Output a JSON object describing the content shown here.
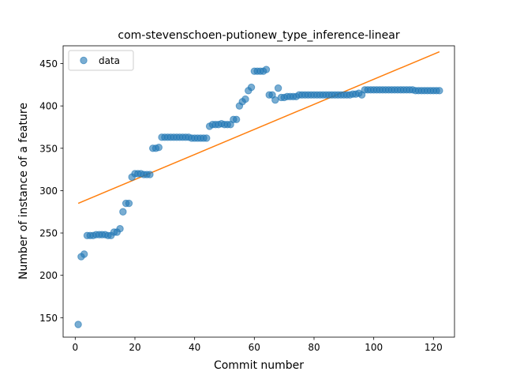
{
  "chart_data": {
    "type": "scatter",
    "title": "com-stevenschoen-putionew_type_inference-linear",
    "xlabel": "Commit number",
    "ylabel": "Number of instance of a feature",
    "xlim": [
      -4.05,
      127.05
    ],
    "ylim": [
      127,
      471
    ],
    "xticks": [
      0,
      20,
      40,
      60,
      80,
      100,
      120
    ],
    "yticks": [
      150,
      200,
      250,
      300,
      350,
      400,
      450
    ],
    "grid": false,
    "legend": {
      "location": "upper left",
      "entries": [
        "data"
      ]
    },
    "colors": {
      "data": "#1f77b4",
      "fit": "#ff7f0e"
    },
    "series": [
      {
        "name": "data",
        "kind": "scatter",
        "x": [
          1,
          2,
          3,
          4,
          5,
          6,
          7,
          8,
          9,
          10,
          11,
          12,
          13,
          14,
          15,
          16,
          17,
          18,
          19,
          20,
          21,
          22,
          23,
          24,
          25,
          26,
          27,
          28,
          29,
          30,
          31,
          32,
          33,
          34,
          35,
          36,
          37,
          38,
          39,
          40,
          41,
          42,
          43,
          44,
          45,
          46,
          47,
          48,
          49,
          50,
          51,
          52,
          53,
          54,
          55,
          56,
          57,
          58,
          59,
          60,
          61,
          62,
          63,
          64,
          65,
          66,
          67,
          68,
          69,
          70,
          71,
          72,
          73,
          74,
          75,
          76,
          77,
          78,
          79,
          80,
          81,
          82,
          83,
          84,
          85,
          86,
          87,
          88,
          89,
          90,
          91,
          92,
          93,
          94,
          95,
          96,
          97,
          98,
          99,
          100,
          101,
          102,
          103,
          104,
          105,
          106,
          107,
          108,
          109,
          110,
          111,
          112,
          113,
          114,
          115,
          116,
          117,
          118,
          119,
          120,
          121,
          122
        ],
        "y": [
          142,
          222,
          225,
          247,
          247,
          247,
          248,
          248,
          248,
          248,
          247,
          247,
          251,
          251,
          255,
          275,
          285,
          285,
          316,
          320,
          320,
          320,
          319,
          319,
          319,
          350,
          350,
          351,
          363,
          363,
          363,
          363,
          363,
          363,
          363,
          363,
          363,
          363,
          362,
          362,
          362,
          362,
          362,
          362,
          376,
          378,
          378,
          378,
          379,
          378,
          378,
          378,
          384,
          384,
          400,
          405,
          408,
          418,
          422,
          441,
          441,
          441,
          441,
          443,
          413,
          413,
          407,
          421,
          410,
          410,
          411,
          411,
          411,
          411,
          413,
          413,
          413,
          413,
          413,
          413,
          413,
          413,
          413,
          413,
          413,
          413,
          413,
          413,
          413,
          413,
          413,
          413,
          414,
          414,
          415,
          413,
          419,
          419,
          419,
          419,
          419,
          419,
          419,
          419,
          419,
          419,
          419,
          419,
          419,
          419,
          419,
          419,
          419,
          418,
          418,
          418,
          418,
          418,
          418,
          418,
          418,
          418
        ]
      },
      {
        "name": "",
        "kind": "line",
        "x": [
          1,
          122
        ],
        "y": [
          285,
          464
        ]
      }
    ]
  }
}
